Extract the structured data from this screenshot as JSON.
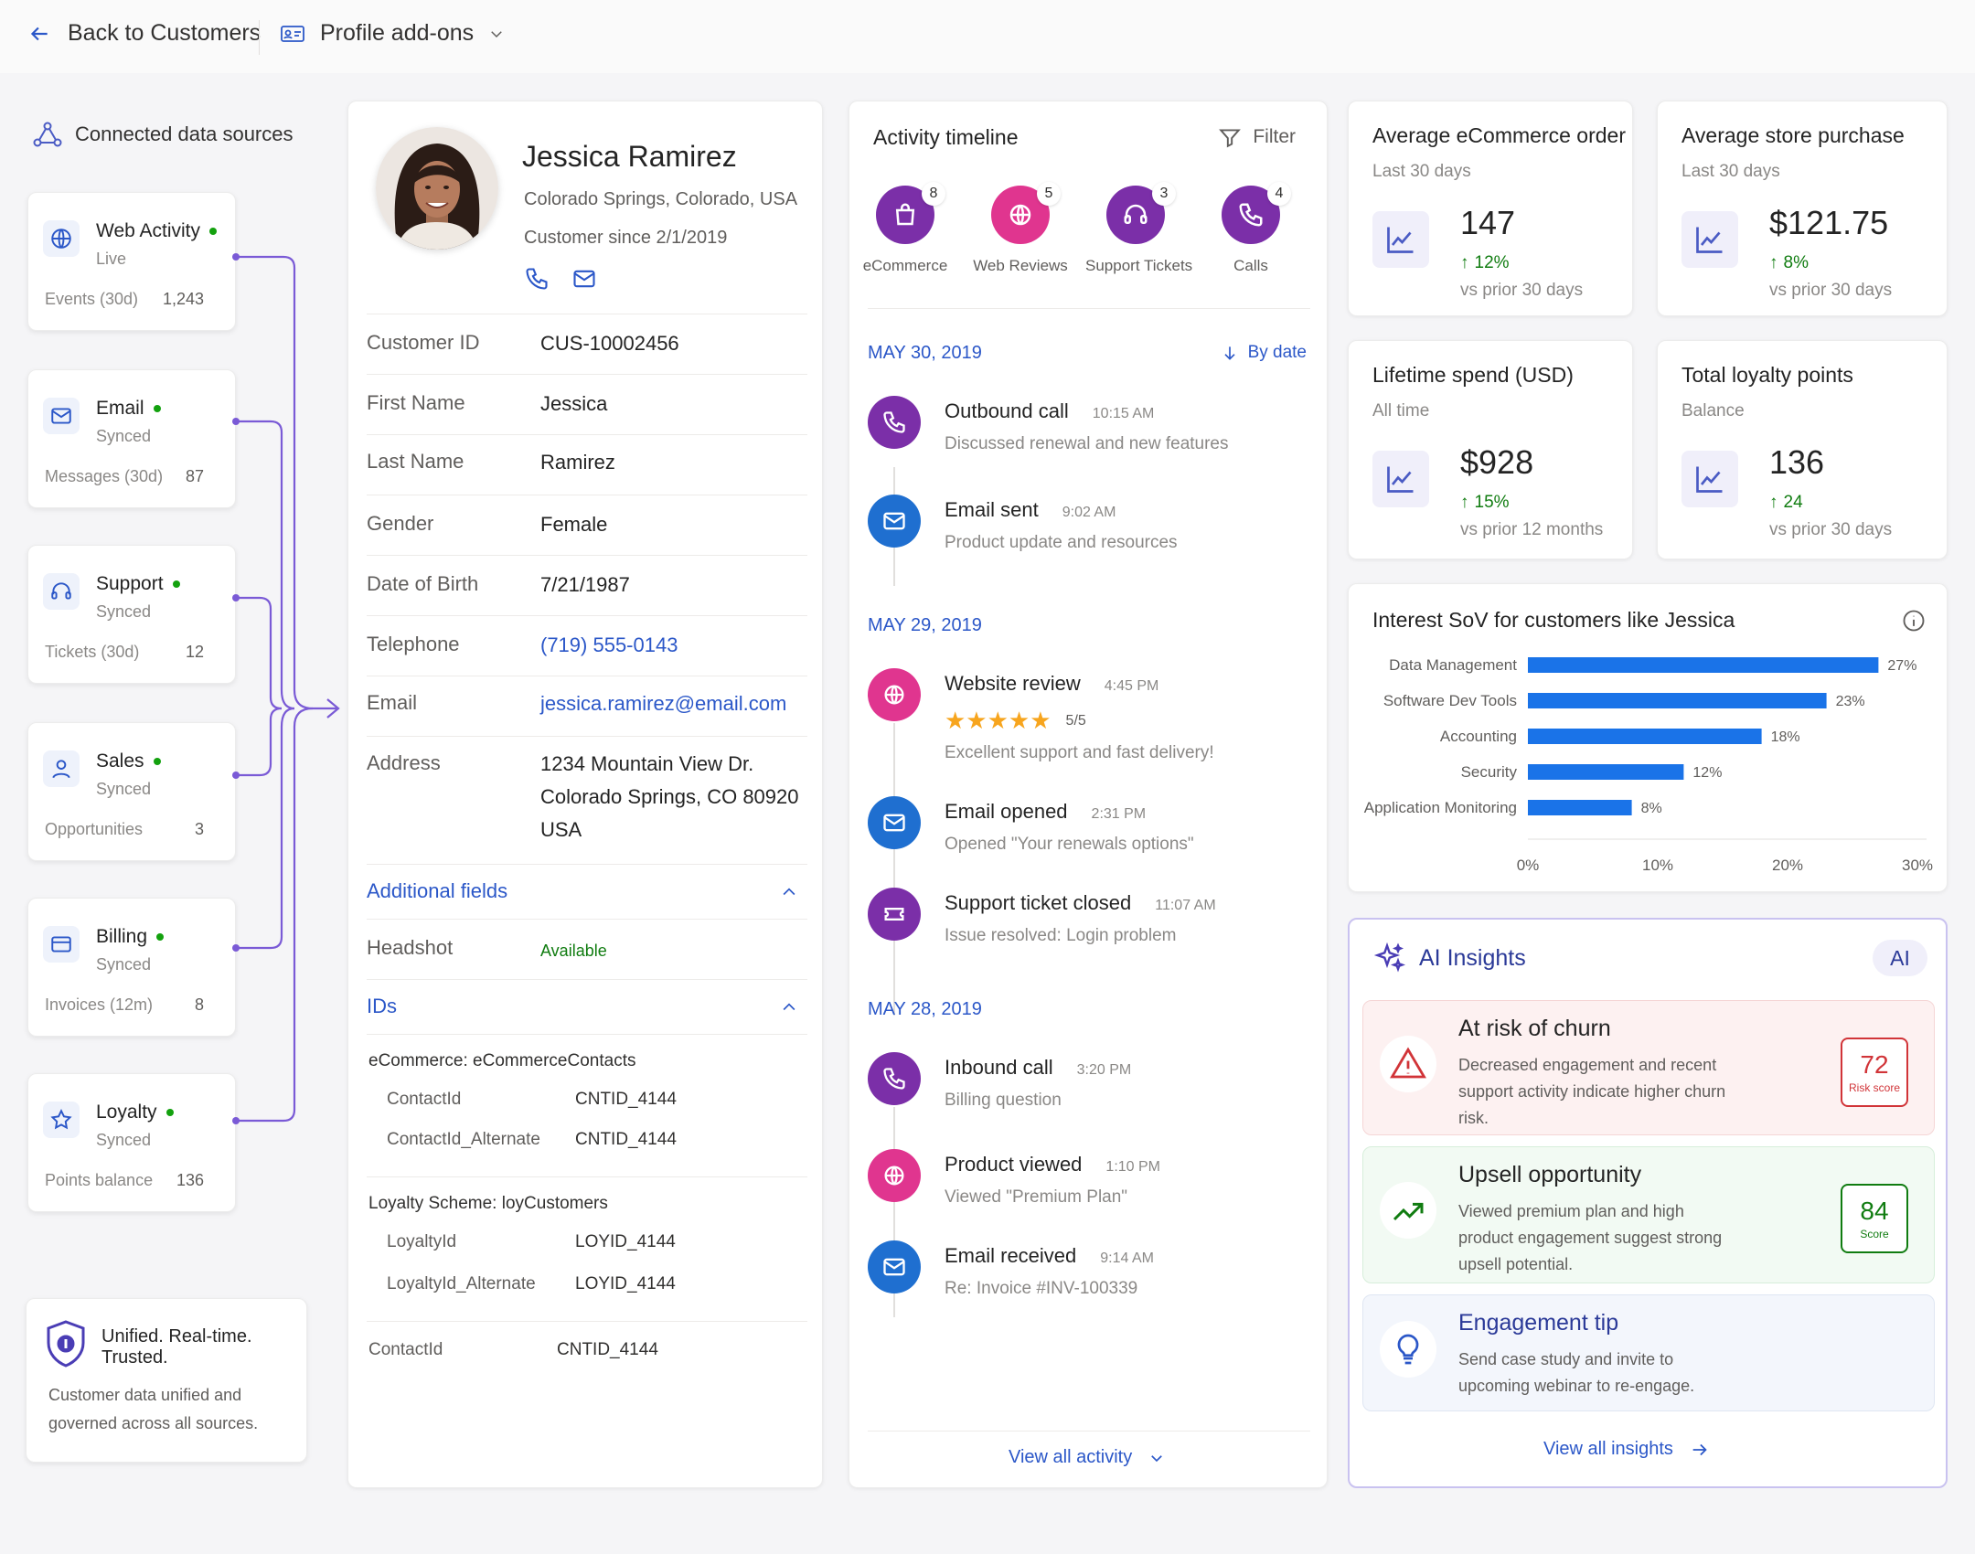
{
  "topbar": {
    "back_label": "Back to Customers",
    "addons_label": "Profile add-ons"
  },
  "sources": {
    "header": "Connected data sources",
    "items": [
      {
        "name": "Web Activity",
        "status": "Live",
        "metric_label": "Events (30d)",
        "metric_value": "1,243",
        "icon": "globe-icon"
      },
      {
        "name": "Email",
        "status": "Synced",
        "metric_label": "Messages (30d)",
        "metric_value": "87",
        "icon": "mail-icon"
      },
      {
        "name": "Support",
        "status": "Synced",
        "metric_label": "Tickets (30d)",
        "metric_value": "12",
        "icon": "headset-icon"
      },
      {
        "name": "Sales",
        "status": "Synced",
        "metric_label": "Opportunities",
        "metric_value": "3",
        "icon": "person-icon"
      },
      {
        "name": "Billing",
        "status": "Synced",
        "metric_label": "Invoices (12m)",
        "metric_value": "8",
        "icon": "card-icon"
      },
      {
        "name": "Loyalty",
        "status": "Synced",
        "metric_label": "Points balance",
        "metric_value": "136",
        "icon": "star-icon"
      }
    ],
    "trust_title": "Unified. Real-time. Trusted.",
    "trust_desc": "Customer data unified and governed across all sources."
  },
  "profile": {
    "name": "Jessica Ramirez",
    "location": "Colorado Springs, Colorado, USA",
    "since": "Customer since 2/1/2019",
    "fields": {
      "customer_id": {
        "label": "Customer ID",
        "value": "CUS-10002456"
      },
      "first_name": {
        "label": "First Name",
        "value": "Jessica"
      },
      "last_name": {
        "label": "Last Name",
        "value": "Ramirez"
      },
      "gender": {
        "label": "Gender",
        "value": "Female"
      },
      "dob": {
        "label": "Date of Birth",
        "value": "7/21/1987"
      },
      "telephone": {
        "label": "Telephone",
        "value": "(719) 555-0143"
      },
      "email": {
        "label": "Email",
        "value": "jessica.ramirez@email.com"
      },
      "address": {
        "label": "Address",
        "line1": "1234 Mountain View Dr.",
        "line2": "Colorado Springs, CO 80920",
        "line3": "USA"
      }
    },
    "additional_fields": {
      "title": "Additional fields",
      "headshot_label": "Headshot",
      "headshot_value": "Available"
    },
    "ids": {
      "title": "IDs",
      "ecommerce_title": "eCommerce: eCommerceContacts",
      "ecommerce_rows": [
        {
          "k": "ContactId",
          "v": "CNTID_4144"
        },
        {
          "k": "ContactId_Alternate",
          "v": "CNTID_4144"
        }
      ],
      "loyalty_title": "Loyalty Scheme: loyCustomers",
      "loyalty_rows": [
        {
          "k": "LoyaltyId",
          "v": "LOYID_4144"
        },
        {
          "k": "LoyaltyId_Alternate",
          "v": "LOYID_4144"
        }
      ],
      "contact_row": {
        "k": "ContactId",
        "v": "CNTID_4144"
      }
    }
  },
  "timeline": {
    "title": "Activity timeline",
    "filter_label": "Filter",
    "sort_label": "By date",
    "categories": [
      {
        "label": "eCommerce",
        "count": "8",
        "color": "#7b2fa8",
        "icon": "bag-icon"
      },
      {
        "label": "Web Reviews",
        "count": "5",
        "color": "#e0358f",
        "icon": "globe-icon"
      },
      {
        "label": "Support Tickets",
        "count": "3",
        "color": "#7b2fa8",
        "icon": "headset-icon"
      },
      {
        "label": "Calls",
        "count": "4",
        "color": "#7b2fa8",
        "icon": "phone-icon"
      }
    ],
    "groups": [
      {
        "date": "MAY 30, 2019",
        "items": [
          {
            "title": "Outbound call",
            "time": "10:15 AM",
            "desc": "Discussed renewal and new features",
            "icon": "phone-icon",
            "color": "#7b2fa8"
          },
          {
            "title": "Email sent",
            "time": "9:02 AM",
            "desc": "Product update and resources",
            "icon": "mail-icon",
            "color": "#1f6fd0"
          }
        ]
      },
      {
        "date": "MAY 29, 2019",
        "items": [
          {
            "title": "Website review",
            "time": "4:45 PM",
            "rating": "5/5",
            "desc": "Excellent support and fast delivery!",
            "icon": "globe-icon",
            "color": "#e0358f"
          },
          {
            "title": "Email opened",
            "time": "2:31 PM",
            "desc": "Opened \"Your renewals options\"",
            "icon": "mail-icon",
            "color": "#1f6fd0"
          },
          {
            "title": "Support ticket closed",
            "time": "11:07 AM",
            "desc": "Issue resolved: Login problem",
            "icon": "ticket-icon",
            "color": "#7b2fa8"
          }
        ]
      },
      {
        "date": "MAY 28, 2019",
        "items": [
          {
            "title": "Inbound call",
            "time": "3:20 PM",
            "desc": "Billing question",
            "icon": "phone-icon",
            "color": "#7b2fa8"
          },
          {
            "title": "Product viewed",
            "time": "1:10 PM",
            "desc": "Viewed \"Premium Plan\"",
            "icon": "globe-icon",
            "color": "#e0358f"
          },
          {
            "title": "Email received",
            "time": "9:14 AM",
            "desc": "Re: Invoice #INV-100339",
            "icon": "mail-icon",
            "color": "#1f6fd0"
          }
        ]
      }
    ],
    "view_all": "View all activity"
  },
  "kpis": [
    {
      "title": "Average eCommerce order",
      "sub": "Last 30 days",
      "value": "147",
      "delta": "12%",
      "prior": "vs prior 30 days"
    },
    {
      "title": "Average store purchase",
      "sub": "Last 30 days",
      "value": "$121.75",
      "delta": "8%",
      "prior": "vs prior 30 days"
    },
    {
      "title": "Lifetime spend (USD)",
      "sub": "All time",
      "value": "$928",
      "delta": "15%",
      "prior": "vs prior 12 months"
    },
    {
      "title": "Total loyalty points",
      "sub": "Balance",
      "value": "136",
      "delta": "24",
      "prior": "vs prior 30 days"
    }
  ],
  "chart_data": {
    "type": "bar",
    "orientation": "horizontal",
    "title": "Interest SoV for customers like Jessica",
    "categories": [
      "Data Management",
      "Software Dev Tools",
      "Accounting",
      "Security",
      "Application Monitoring"
    ],
    "values": [
      27,
      23,
      18,
      12,
      8
    ],
    "data_labels": [
      "27%",
      "23%",
      "18%",
      "12%",
      "8%"
    ],
    "xlim": [
      0,
      30
    ],
    "x_ticks": [
      "0%",
      "10%",
      "20%",
      "30%"
    ],
    "color": "#1a73e8",
    "grid": false
  },
  "ai": {
    "title": "AI Insights",
    "badge": "AI",
    "insights": [
      {
        "title": "At risk of churn",
        "desc": "Decreased engagement and recent support activity indicate higher churn risk.",
        "score": "72",
        "score_label": "Risk score"
      },
      {
        "title": "Upsell opportunity",
        "desc": "Viewed premium plan and high product engagement suggest strong upsell potential.",
        "score": "84",
        "score_label": "Score"
      },
      {
        "title": "Engagement tip",
        "desc": "Send case study and invite to upcoming webinar to re-engage."
      }
    ],
    "view_all": "View all insights"
  }
}
